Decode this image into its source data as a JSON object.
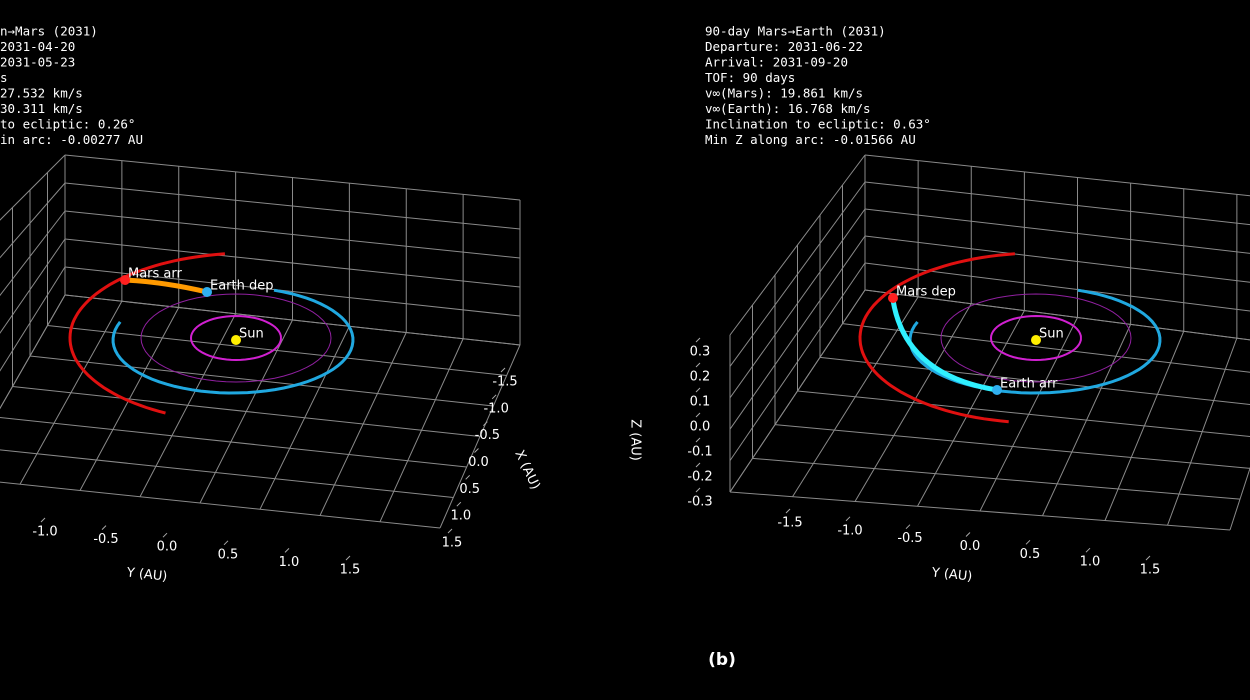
{
  "panels": [
    {
      "info_lines": [
        "n→Mars (2031)",
        "2031-04-20",
        "2031-05-23",
        "s",
        "27.532 km/s",
        "30.311 km/s",
        "to ecliptic:  0.26°",
        "in arc: -0.00277 AU"
      ],
      "body_labels": {
        "mars": "Mars arr",
        "earth": "Earth dep",
        "sun": "Sun"
      },
      "x_axis": {
        "label": "X (AU)",
        "ticks": [
          -1.5,
          {
            "value": -1,
            "label": "-1.0"
          },
          -0.5,
          {
            "value": 0,
            "label": "0.0"
          },
          0.5,
          {
            "value": 1,
            "label": "1.0"
          },
          1.5
        ]
      },
      "y_axis": {
        "label": "Y (AU)",
        "ticks": [
          {
            "value": -1,
            "label": "-1.0"
          },
          -0.5,
          {
            "value": 0,
            "label": "0.0"
          },
          0.5,
          {
            "value": 1,
            "label": "1.0"
          },
          1.5
        ]
      }
    },
    {
      "info_lines": [
        "90-day Mars→Earth (2031)",
        "Departure: 2031-06-22",
        "Arrival:   2031-09-20",
        "TOF: 90 days",
        "v∞(Mars):  19.861 km/s",
        "v∞(Earth):  16.768 km/s",
        "Inclination to ecliptic:  0.63°",
        "Min Z along arc: -0.01566 AU"
      ],
      "body_labels": {
        "mars": "Mars dep",
        "earth": "Earth arr",
        "sun": "Sun"
      },
      "y_axis": {
        "label": "Y (AU)",
        "ticks": [
          -1.5,
          {
            "value": -1,
            "label": "-1.0"
          },
          -0.5,
          {
            "value": 0,
            "label": "0.0"
          },
          0.5,
          {
            "value": 1,
            "label": "1.0"
          },
          1.5
        ]
      },
      "z_axis": {
        "label": "Z (AU)",
        "ticks": [
          0.3,
          0.2,
          0.1,
          {
            "value": 0,
            "label": "0.0"
          },
          -0.1,
          -0.2,
          -0.3
        ]
      }
    }
  ],
  "caption": "(b)"
}
